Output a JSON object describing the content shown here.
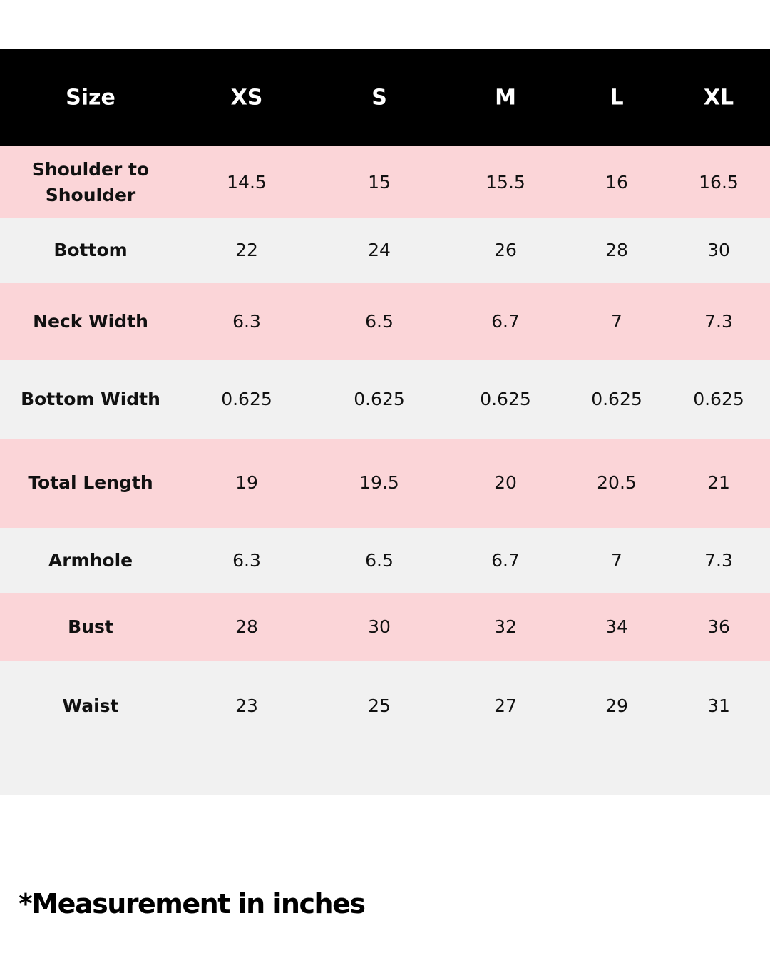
{
  "table": {
    "header": [
      "Size",
      "XS",
      "S",
      "M",
      "L",
      "XL"
    ],
    "rows": [
      [
        "Shoulder to Shoulder",
        "14.5",
        "15",
        "15.5",
        "16",
        "16.5"
      ],
      [
        "Bottom",
        "22",
        "24",
        "26",
        "28",
        "30"
      ],
      [
        "Neck Width",
        "6.3",
        "6.5",
        "6.7",
        "7",
        "7.3"
      ],
      [
        "Bottom Width",
        "0.625",
        "0.625",
        "0.625",
        "0.625",
        "0.625"
      ],
      [
        "Total Length",
        "19",
        "19.5",
        "20",
        "20.5",
        "21"
      ],
      [
        "Armhole",
        "6.3",
        "6.5",
        "6.7",
        "7",
        "7.3"
      ],
      [
        "Bust",
        "28",
        "30",
        "32",
        "34",
        "36"
      ],
      [
        "Waist",
        "23",
        "25",
        "27",
        "29",
        "31"
      ]
    ]
  },
  "footnote": "*Measurement in inches"
}
